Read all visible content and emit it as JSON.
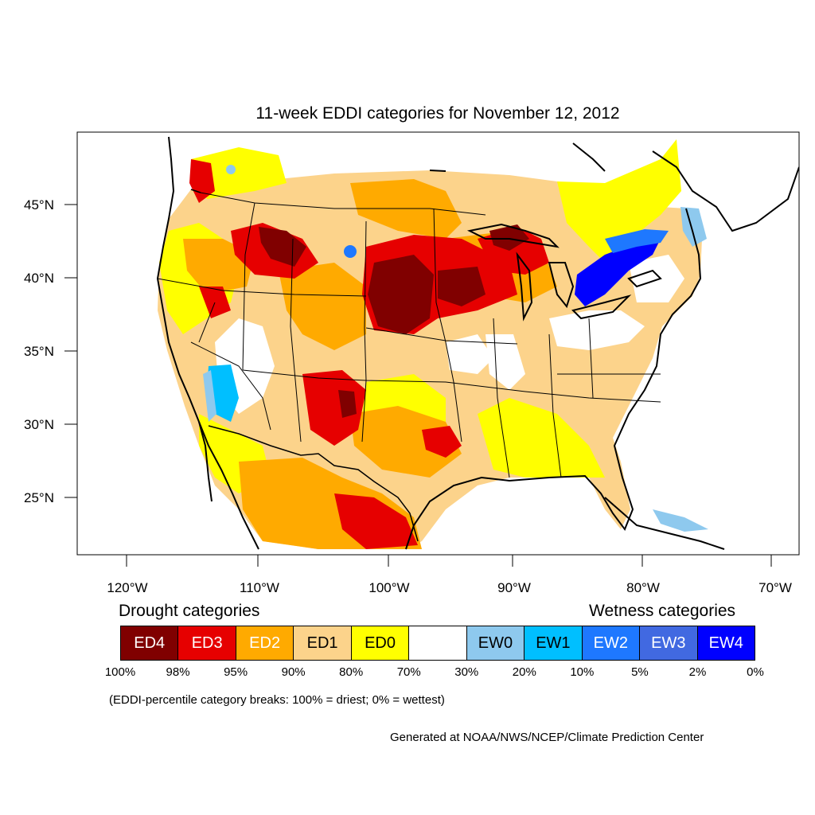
{
  "title": "11-week EDDI categories for November 12, 2012",
  "axes": {
    "y_ticks": [
      "45°N",
      "40°N",
      "35°N",
      "30°N",
      "25°N"
    ],
    "x_ticks": [
      "120°W",
      "110°W",
      "100°W",
      "90°W",
      "80°W",
      "70°W"
    ]
  },
  "legend": {
    "drought_heading": "Drought categories",
    "wetness_heading": "Wetness categories",
    "categories": [
      {
        "label": "ED4",
        "color": "#800000",
        "text_color": "#ffffff"
      },
      {
        "label": "ED3",
        "color": "#e60000",
        "text_color": "#ffffff"
      },
      {
        "label": "ED2",
        "color": "#ffaa00",
        "text_color": "#ffffff"
      },
      {
        "label": "ED1",
        "color": "#fcd38b",
        "text_color": "#000000"
      },
      {
        "label": "ED0",
        "color": "#ffff00",
        "text_color": "#000000"
      },
      {
        "label": "",
        "color": "#ffffff",
        "text_color": "#000000"
      },
      {
        "label": "EW0",
        "color": "#8ec9ee",
        "text_color": "#000000"
      },
      {
        "label": "EW1",
        "color": "#00bfff",
        "text_color": "#000000"
      },
      {
        "label": "EW2",
        "color": "#1e78ff",
        "text_color": "#ffffff"
      },
      {
        "label": "EW3",
        "color": "#4169e1",
        "text_color": "#ffffff"
      },
      {
        "label": "EW4",
        "color": "#0000ff",
        "text_color": "#ffffff"
      }
    ],
    "breaks": [
      "100%",
      "98%",
      "95%",
      "90%",
      "80%",
      "70%",
      "30%",
      "20%",
      "10%",
      "5%",
      "2%",
      "0%"
    ]
  },
  "note": "(EDDI-percentile category breaks: 100% = driest; 0% = wettest)",
  "credit": "Generated at NOAA/NWS/NCEP/Climate Prediction Center"
}
